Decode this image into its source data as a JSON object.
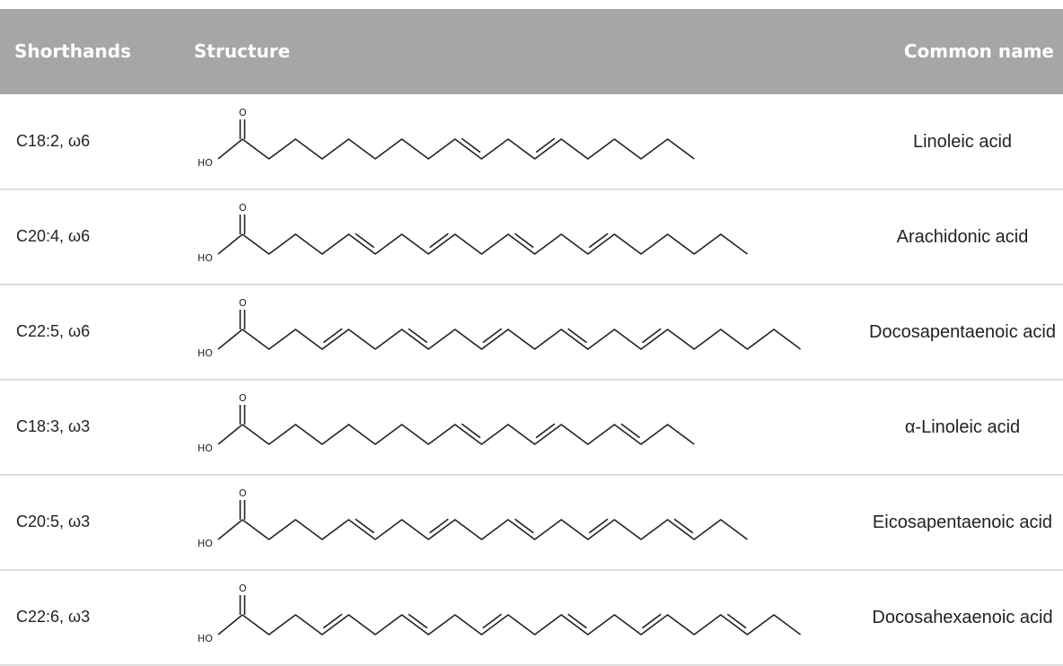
{
  "header": {
    "shorthands": "Shorthands",
    "structure": "Structure",
    "common_name": "Common name"
  },
  "acids": [
    {
      "shorthand": "C18:2, ω6",
      "name": "Linoleic acid",
      "carbons": 18,
      "double_bonds_at": [
        9,
        12
      ]
    },
    {
      "shorthand": "C20:4, ω6",
      "name": "Arachidonic acid",
      "carbons": 20,
      "double_bonds_at": [
        5,
        8,
        11,
        14
      ]
    },
    {
      "shorthand": "C22:5, ω6",
      "name": "Docosapentaenoic acid",
      "carbons": 22,
      "double_bonds_at": [
        4,
        7,
        10,
        13,
        16
      ]
    },
    {
      "shorthand": "C18:3, ω3",
      "name": "α-Linoleic acid",
      "carbons": 18,
      "double_bonds_at": [
        9,
        12,
        15
      ]
    },
    {
      "shorthand": "C20:5, ω3",
      "name": "Eicosapentaenoic acid",
      "carbons": 20,
      "double_bonds_at": [
        5,
        8,
        11,
        14,
        17
      ]
    },
    {
      "shorthand": "C22:6, ω3",
      "name": "Docosahexaenoic acid",
      "carbons": 22,
      "double_bonds_at": [
        4,
        7,
        10,
        13,
        16,
        19
      ]
    }
  ],
  "labels": {
    "hydroxyl": "HO",
    "oxygen": "O"
  }
}
